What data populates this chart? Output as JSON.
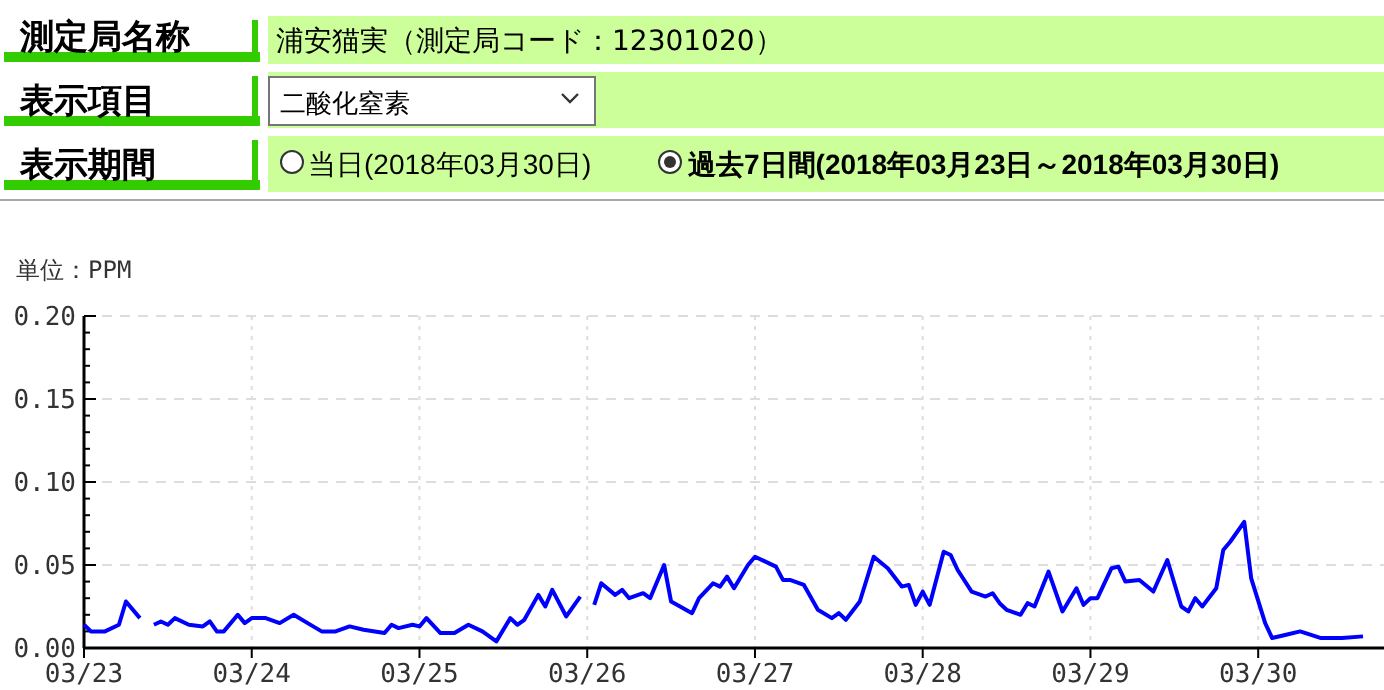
{
  "chart_data": {
    "type": "line",
    "ylabel": "単位：PPM",
    "annotations": [
      "測定局名称",
      "浦安猫実（測定局コード：12301020）",
      "表示項目",
      "二酸化窒素",
      "表示期間",
      "当日(2018年03月30日)",
      "過去7日間(2018年03月23日～2018年03月30日)"
    ],
    "xlim": [
      "2018-03-23T00:00",
      "2018-03-30T18:00"
    ],
    "xticks": [
      {
        "value": "2018-03-23",
        "label": "03/23"
      },
      {
        "value": "2018-03-24",
        "label": "03/24"
      },
      {
        "value": "2018-03-25",
        "label": "03/25"
      },
      {
        "value": "2018-03-26",
        "label": "03/26"
      },
      {
        "value": "2018-03-27",
        "label": "03/27"
      },
      {
        "value": "2018-03-28",
        "label": "03/28"
      },
      {
        "value": "2018-03-29",
        "label": "03/29"
      },
      {
        "value": "2018-03-30",
        "label": "03/30"
      }
    ],
    "ylim": [
      0,
      0.2
    ],
    "yticks": [
      {
        "value": 0,
        "label": "0.00"
      },
      {
        "value": 0.01,
        "label": null
      },
      {
        "value": 0.02,
        "label": null
      },
      {
        "value": 0.03,
        "label": null
      },
      {
        "value": 0.04,
        "label": null
      },
      {
        "value": 0.05,
        "label": "0.05"
      },
      {
        "value": 0.06,
        "label": null
      },
      {
        "value": 0.07,
        "label": null
      },
      {
        "value": 0.08,
        "label": null
      },
      {
        "value": 0.09,
        "label": null
      },
      {
        "value": 0.1,
        "label": "0.10"
      },
      {
        "value": 0.11,
        "label": null
      },
      {
        "value": 0.12,
        "label": null
      },
      {
        "value": 0.13,
        "label": null
      },
      {
        "value": 0.14,
        "label": null
      },
      {
        "value": 0.15,
        "label": "0.15"
      },
      {
        "value": 0.16,
        "label": null
      },
      {
        "value": 0.17,
        "label": null
      },
      {
        "value": 0.18,
        "label": null
      },
      {
        "value": 0.19,
        "label": null
      },
      {
        "value": 0.2,
        "label": "0.20"
      }
    ],
    "grid": true,
    "series": [
      {
        "color": "#0000ff",
        "x": [
          "2018-03-23T00:00",
          "2018-03-23T01:00",
          "2018-03-23T03:00",
          "2018-03-23T05:00",
          "2018-03-23T06:00",
          "2018-03-23T08:00",
          "2018-03-23T09:00",
          "2018-03-23T10:00",
          "2018-03-23T11:00",
          "2018-03-23T12:00",
          "2018-03-23T13:00",
          "2018-03-23T15:00",
          "2018-03-23T17:00",
          "2018-03-23T18:00",
          "2018-03-23T19:00",
          "2018-03-23T20:00",
          "2018-03-23T22:00",
          "2018-03-23T23:00",
          "2018-03-24T00:00",
          "2018-03-24T02:00",
          "2018-03-24T04:00",
          "2018-03-24T06:00",
          "2018-03-24T08:00",
          "2018-03-24T10:00",
          "2018-03-24T12:00",
          "2018-03-24T14:00",
          "2018-03-24T16:00",
          "2018-03-24T19:00",
          "2018-03-24T20:00",
          "2018-03-24T21:00",
          "2018-03-24T23:00",
          "2018-03-25T00:00",
          "2018-03-25T01:00",
          "2018-03-25T03:00",
          "2018-03-25T05:00",
          "2018-03-25T07:00",
          "2018-03-25T09:00",
          "2018-03-25T11:00",
          "2018-03-25T13:00",
          "2018-03-25T14:00",
          "2018-03-25T15:00",
          "2018-03-25T17:00",
          "2018-03-25T18:00",
          "2018-03-25T19:00",
          "2018-03-25T21:00",
          "2018-03-25T23:00",
          "2018-03-26T00:00",
          "2018-03-26T01:00",
          "2018-03-26T02:00",
          "2018-03-26T04:00",
          "2018-03-26T05:00",
          "2018-03-26T06:00",
          "2018-03-26T08:00",
          "2018-03-26T09:00",
          "2018-03-26T11:00",
          "2018-03-26T12:00",
          "2018-03-26T15:00",
          "2018-03-26T16:00",
          "2018-03-26T18:00",
          "2018-03-26T19:00",
          "2018-03-26T20:00",
          "2018-03-26T21:00",
          "2018-03-26T23:00",
          "2018-03-27T00:00",
          "2018-03-27T03:00",
          "2018-03-27T04:00",
          "2018-03-27T05:00",
          "2018-03-27T07:00",
          "2018-03-27T09:00",
          "2018-03-27T11:00",
          "2018-03-27T12:00",
          "2018-03-27T13:00",
          "2018-03-27T15:00",
          "2018-03-27T17:00",
          "2018-03-27T19:00",
          "2018-03-27T21:00",
          "2018-03-27T22:00",
          "2018-03-27T23:00",
          "2018-03-28T00:00",
          "2018-03-28T01:00",
          "2018-03-28T03:00",
          "2018-03-28T04:00",
          "2018-03-28T05:00",
          "2018-03-28T07:00",
          "2018-03-28T09:00",
          "2018-03-28T10:00",
          "2018-03-28T11:00",
          "2018-03-28T12:00",
          "2018-03-28T14:00",
          "2018-03-28T15:00",
          "2018-03-28T16:00",
          "2018-03-28T18:00",
          "2018-03-28T20:00",
          "2018-03-28T22:00",
          "2018-03-28T23:00",
          "2018-03-29T00:00",
          "2018-03-29T01:00",
          "2018-03-29T03:00",
          "2018-03-29T04:00",
          "2018-03-29T05:00",
          "2018-03-29T07:00",
          "2018-03-29T09:00",
          "2018-03-29T11:00",
          "2018-03-29T13:00",
          "2018-03-29T14:00",
          "2018-03-29T15:00",
          "2018-03-29T16:00",
          "2018-03-29T18:00",
          "2018-03-29T19:00",
          "2018-03-29T20:00",
          "2018-03-29T22:00",
          "2018-03-29T23:00",
          "2018-03-30T01:00",
          "2018-03-30T02:00",
          "2018-03-30T04:00",
          "2018-03-30T06:00",
          "2018-03-30T09:00",
          "2018-03-30T12:00",
          "2018-03-30T15:00"
        ],
        "values": [
          0.014,
          0.01,
          0.01,
          0.014,
          0.028,
          0.018,
          null,
          0.014,
          0.016,
          0.014,
          0.018,
          0.014,
          0.013,
          0.016,
          0.01,
          0.01,
          0.02,
          0.015,
          0.018,
          0.018,
          0.015,
          0.02,
          0.015,
          0.01,
          0.01,
          0.013,
          0.011,
          0.009,
          0.014,
          0.012,
          0.014,
          0.013,
          0.018,
          0.009,
          0.009,
          0.014,
          0.01,
          0.004,
          0.018,
          0.014,
          0.017,
          0.032,
          0.025,
          0.035,
          0.019,
          0.031,
          null,
          0.026,
          0.039,
          0.032,
          0.035,
          0.03,
          0.033,
          0.03,
          0.05,
          0.028,
          0.021,
          0.03,
          0.039,
          0.037,
          0.043,
          0.036,
          0.05,
          0.055,
          0.049,
          0.041,
          0.041,
          0.038,
          0.023,
          0.018,
          0.021,
          0.017,
          0.028,
          0.055,
          0.048,
          0.037,
          0.038,
          0.026,
          0.034,
          0.026,
          0.058,
          0.056,
          0.047,
          0.034,
          0.031,
          0.033,
          0.027,
          0.023,
          0.02,
          0.027,
          0.025,
          0.046,
          0.022,
          0.036,
          0.026,
          0.03,
          0.03,
          0.048,
          0.049,
          0.04,
          0.041,
          0.034,
          0.053,
          0.025,
          0.022,
          0.03,
          0.025,
          0.036,
          0.059,
          0.064,
          0.076,
          0.042,
          0.015,
          0.006,
          0.008,
          0.01,
          0.006,
          0.006,
          0.007
        ]
      }
    ]
  }
}
